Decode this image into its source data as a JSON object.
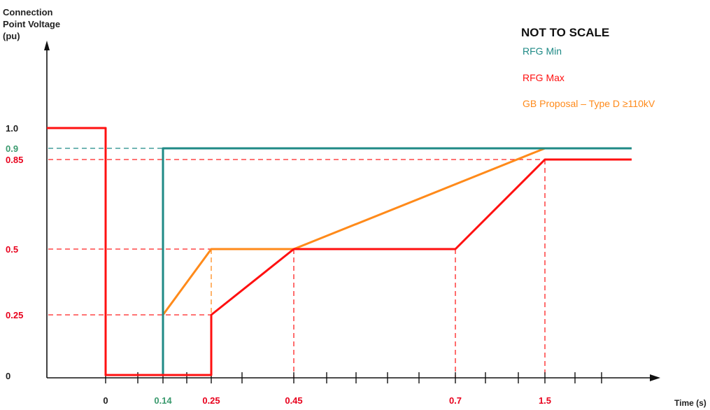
{
  "chart_data": {
    "type": "line",
    "y_axis_label_lines": [
      "Connection",
      "Point Voltage",
      "(pu)"
    ],
    "x_axis_label": "Time (s)",
    "note": "NOT TO SCALE",
    "ylim": [
      0,
      1.0
    ],
    "y_ticks": [
      {
        "value": 1.0,
        "label": "1.0",
        "color": "#222222"
      },
      {
        "value": 0.9,
        "label": "0.9",
        "color": "#3a9a6e"
      },
      {
        "value": 0.85,
        "label": "0.85",
        "color": "#e8001c"
      },
      {
        "value": 0.5,
        "label": "0.5",
        "color": "#e8001c"
      },
      {
        "value": 0.25,
        "label": "0.25",
        "color": "#e8001c"
      },
      {
        "value": 0,
        "label": "0",
        "color": "#222222"
      }
    ],
    "x_ticks": [
      {
        "value": 0,
        "label": "0",
        "color": "#222222"
      },
      {
        "value": 0.14,
        "label": "0.14",
        "color": "#3a9a6e"
      },
      {
        "value": 0.25,
        "label": "0.25",
        "color": "#e8001c"
      },
      {
        "value": 0.45,
        "label": "0.45",
        "color": "#e8001c"
      },
      {
        "value": 0.7,
        "label": "0.7",
        "color": "#e8001c"
      },
      {
        "value": 1.5,
        "label": "1.5",
        "color": "#e8001c"
      }
    ],
    "series": [
      {
        "name": "RFG Min",
        "color": "#1f8a86",
        "points": [
          [
            0.14,
            0
          ],
          [
            0.14,
            0.9
          ],
          [
            2.0,
            0.9
          ]
        ]
      },
      {
        "name": "RFG Max",
        "color": "#ff1010",
        "points": [
          [
            -0.5,
            1.0
          ],
          [
            0,
            1.0
          ],
          [
            0,
            0
          ],
          [
            0.25,
            0
          ],
          [
            0.25,
            0.25
          ],
          [
            0.45,
            0.5
          ],
          [
            0.7,
            0.5
          ],
          [
            1.5,
            0.85
          ],
          [
            2.0,
            0.85
          ]
        ]
      },
      {
        "name": "GB Proposal – Type D ≥110kV",
        "color": "#ff8a1a",
        "points": [
          [
            -0.5,
            1.0
          ],
          [
            0,
            1.0
          ],
          [
            0,
            0
          ],
          [
            0.14,
            0
          ],
          [
            0.14,
            0.25
          ],
          [
            0.25,
            0.5
          ],
          [
            0.45,
            0.5
          ],
          [
            1.5,
            0.9
          ],
          [
            2.0,
            0.9
          ]
        ],
        "dashed_from_x": 1.5
      }
    ],
    "reference_lines": [
      {
        "type": "h",
        "y": 0.9,
        "x_to": 0.14,
        "color": "#1f8a86"
      },
      {
        "type": "h",
        "y": 0.85,
        "x_to": 1.5,
        "color": "#ff2020"
      },
      {
        "type": "h",
        "y": 0.5,
        "x_to": 0.45,
        "color": "#ff2020"
      },
      {
        "type": "h",
        "y": 0.25,
        "x_to": 0.25,
        "color": "#ff2020"
      },
      {
        "type": "v",
        "x": 0.25,
        "y_to": 0.5,
        "color": "#ff8a1a"
      },
      {
        "type": "v",
        "x": 0.45,
        "y_to": 0.5,
        "color": "#ff2020"
      },
      {
        "type": "v",
        "x": 0.7,
        "y_to": 0.5,
        "color": "#ff2020"
      },
      {
        "type": "v",
        "x": 1.5,
        "y_to": 0.85,
        "color": "#ff2020"
      }
    ]
  }
}
